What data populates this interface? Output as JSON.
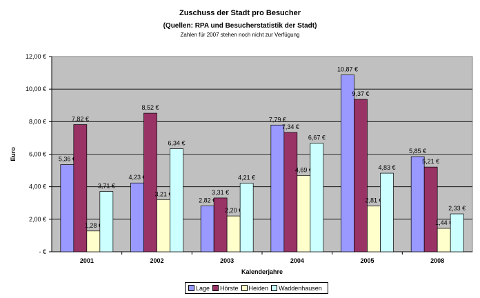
{
  "chart_data": {
    "type": "bar",
    "title": "Zuschuss der Stadt pro Besucher",
    "subtitle": "(Quellen: RPA und Besucherstatistik der Stadt)",
    "note": "Zahlen  für 2007 stehen noch nicht zur Verfügung",
    "xlabel": "Kalenderjahre",
    "ylabel": "Euro",
    "ylim": [
      0,
      12
    ],
    "yticks": [
      {
        "v": 0,
        "label": "-    €"
      },
      {
        "v": 2,
        "label": "2,00 €"
      },
      {
        "v": 4,
        "label": "4,00 €"
      },
      {
        "v": 6,
        "label": "6,00 €"
      },
      {
        "v": 8,
        "label": "8,00 €"
      },
      {
        "v": 10,
        "label": "10,00 €"
      },
      {
        "v": 12,
        "label": "12,00 €"
      }
    ],
    "grid": true,
    "legend_position": "bottom",
    "categories": [
      "2001",
      "2002",
      "2003",
      "2004",
      "2005",
      "2008"
    ],
    "series": [
      {
        "name": "Lage",
        "color": "#9999ff",
        "values": [
          5.36,
          4.23,
          2.82,
          7.79,
          10.87,
          5.85
        ],
        "labels": [
          "5,36 €",
          "4,23 €",
          "2,82 €",
          "7,79 €",
          "10,87 €",
          "5,85 €"
        ]
      },
      {
        "name": "Hörste",
        "color": "#993366",
        "values": [
          7.82,
          8.52,
          3.31,
          7.34,
          9.37,
          5.21
        ],
        "labels": [
          "7,82 €",
          "8,52 €",
          "3,31 €",
          "7,34 €",
          "9,37 €",
          "5,21 €"
        ]
      },
      {
        "name": "Heiden",
        "color": "#ffffcc",
        "values": [
          1.28,
          3.21,
          2.2,
          4.69,
          2.81,
          1.44
        ],
        "labels": [
          "1,28 €",
          "3,21 €",
          "2,20 €",
          "4,69 €",
          "2,81 €",
          "1,44 €"
        ]
      },
      {
        "name": "Waddenhausen",
        "color": "#ccffff",
        "values": [
          3.71,
          6.34,
          4.21,
          6.67,
          4.83,
          2.33
        ],
        "labels": [
          "3,71 €",
          "6,34 €",
          "4,21 €",
          "6,67 €",
          "4,83 €",
          "2,33 €"
        ]
      }
    ],
    "plot_background": "#c0c0c0"
  }
}
